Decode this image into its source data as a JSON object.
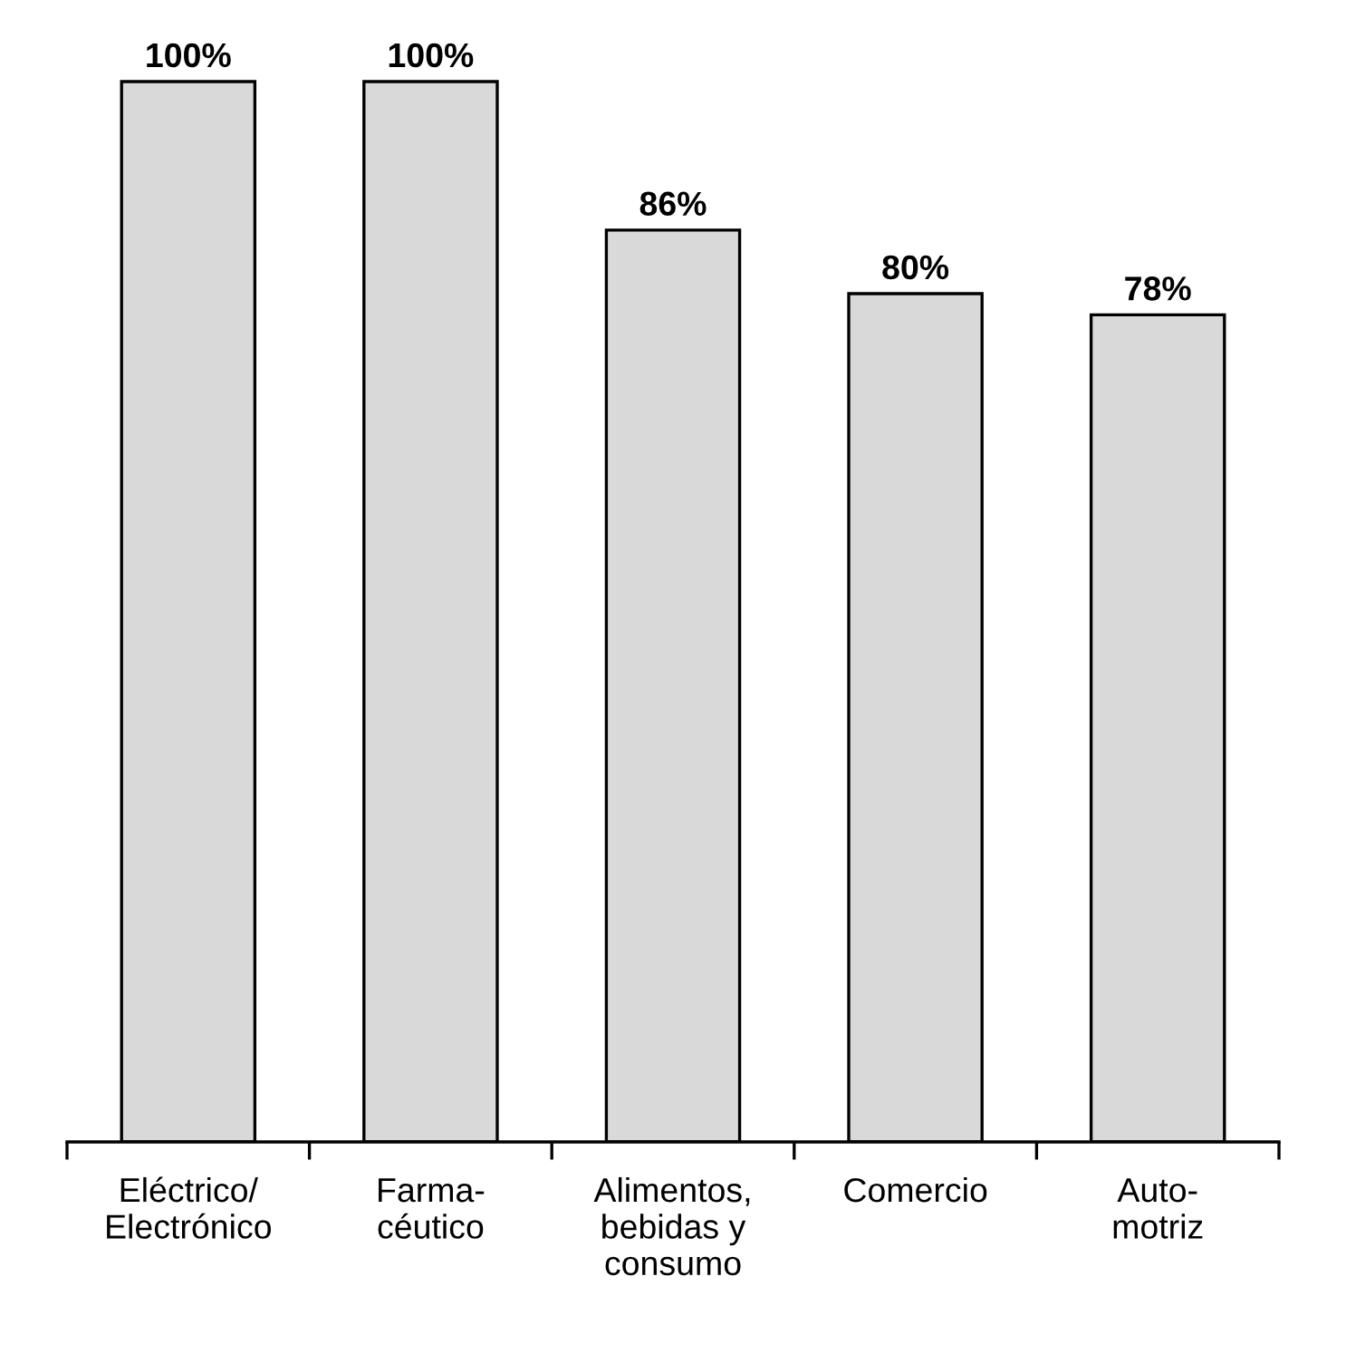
{
  "chart_data": {
    "type": "bar",
    "categories": [
      "Eléctrico/\nElectrónico",
      "Farma-\ncéutico",
      "Alimentos,\nbebidas y\nconsumo",
      "Comercio",
      "Auto-\nmotriz"
    ],
    "values": [
      100,
      100,
      86,
      80,
      78
    ],
    "value_labels": [
      "100%",
      "100%",
      "86%",
      "80%",
      "78%"
    ],
    "color": "#d9d9d9",
    "grid": false,
    "legend": false
  }
}
